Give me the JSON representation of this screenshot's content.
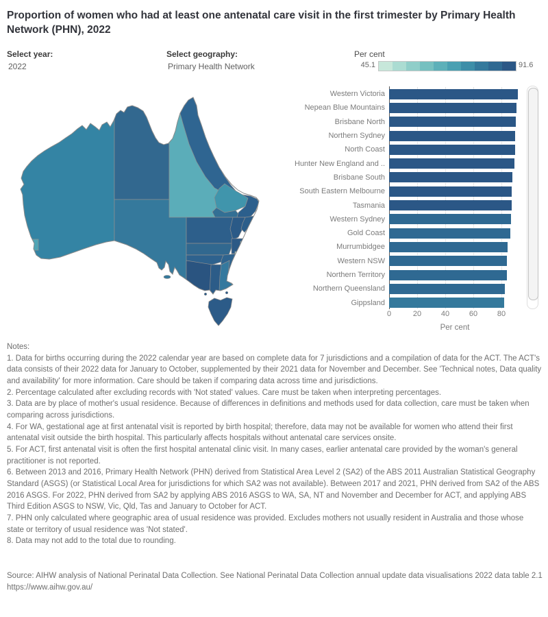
{
  "title": "Proportion of women who had at least one antenatal care visit in the first trimester by Primary Health Network (PHN), 2022",
  "controls": {
    "year_label": "Select year:",
    "year_value": "2022",
    "geography_label": "Select geography:",
    "geography_value": "Primary Health Network"
  },
  "legend": {
    "title": "Per cent",
    "min": "45.1",
    "max": "91.6",
    "colors": [
      "#c7e7da",
      "#abdcd2",
      "#90cec9",
      "#76c0c0",
      "#5db0b9",
      "#4aa0b2",
      "#3d8ea8",
      "#34799c",
      "#2f6992",
      "#2b5786"
    ]
  },
  "map": {
    "region_colors": {
      "wa": "#3484a4",
      "perth": "#4fa5b5",
      "nt": "#32688f",
      "sa": "#35799c",
      "qld_west": "#5badb9",
      "qld_north": "#2f6591",
      "qld_central": "#4095ac",
      "darling_downs": "#336f94",
      "brisbane": "#2c5f8c",
      "western_nsw": "#2d5f8b",
      "hunter": "#2b5a87",
      "north_coast": "#2c5e8a",
      "murrumbidgee": "#31688f",
      "sydney": "#2c5a86",
      "sydney_spot": "#7fc5c8",
      "act": "#a8dbc8",
      "murray": "#2e628e",
      "southeast_nsw": "#2f648f",
      "western_victoria": "#2a5480",
      "melbourne": "#2c5c88",
      "gippsland": "#35799e",
      "tasmania": "#2c5b88",
      "kangaroo_island": "#35799c",
      "bass_islands": "#2c5b88"
    }
  },
  "chart_data": {
    "type": "bar",
    "orientation": "horizontal",
    "title": "",
    "xlabel": "Per cent",
    "ylabel": "",
    "xlim": [
      0,
      95
    ],
    "x_ticks": [
      0,
      20,
      40,
      60,
      80
    ],
    "grid": "dotted vertical",
    "color_scale_domain": [
      45.1,
      91.6
    ],
    "categories": [
      "Western Victoria",
      "Nepean Blue Mountains",
      "Brisbane North",
      "Northern Sydney",
      "North Coast",
      "Hunter New England and ..",
      "Brisbane South",
      "South Eastern Melbourne",
      "Tasmania",
      "Western Sydney",
      "Gold Coast",
      "Murrumbidgee",
      "Western NSW",
      "Northern Territory",
      "Northern Queensland",
      "Gippsland"
    ],
    "values": [
      91.6,
      90.9,
      90.4,
      89.9,
      89.5,
      89.4,
      88.0,
      87.5,
      87.3,
      86.8,
      86.4,
      84.3,
      84.1,
      84.0,
      82.5,
      82.0
    ]
  },
  "notes": {
    "heading": "Notes:",
    "items": [
      "1. Data for births occurring during the 2022 calendar year are based on complete data for 7 jurisdictions and a compilation of data for the ACT. The ACT's data consists of their 2022 data for January to October, supplemented by their 2021 data for November and December. See 'Technical notes, Data quality and availability' for more information. Care should be taken if comparing data across time and jurisdictions.",
      "2. Percentage calculated after excluding records with 'Not stated' values. Care must be taken when interpreting percentages.",
      "3. Data are by place of mother's usual residence. Because of differences in definitions and methods used for data collection, care must be taken when comparing across jurisdictions.",
      "4. For WA, gestational age at first antenatal visit is reported by birth hospital; therefore, data may not be available for women who attend their first antenatal visit outside the birth hospital. This particularly affects hospitals without antenatal care services onsite.",
      "5. For ACT, first antenatal visit is often the first hospital antenatal clinic visit. In many cases, earlier antenatal care provided by the woman's general practitioner is not reported.",
      "6. Between 2013 and 2016, Primary Health Network (PHN) derived from Statistical Area Level 2 (SA2) of the ABS 2011 Australian Statistical Geography Standard (ASGS) (or Statistical Local Area for jurisdictions for which SA2 was not available). Between 2017 and 2021, PHN derived from SA2 of the ABS 2016 ASGS. For 2022, PHN derived from SA2 by applying ABS 2016 ASGS to WA, SA, NT and November and December for ACT, and applying ABS Third Edition ASGS to NSW, Vic, Qld, Tas and January to October for ACT.",
      "7. PHN only calculated where geographic area of usual residence was provided. Excludes mothers not usually resident in Australia and those whose state or territory of usual residence was 'Not stated'.",
      "8. Data may not add to the total due to rounding."
    ]
  },
  "source": {
    "line1": "Source: AIHW analysis of National Perinatal Data Collection. See National Perinatal Data Collection annual update data visualisations 2022 data table 2.1",
    "line2": "https://www.aihw.gov.au/"
  }
}
